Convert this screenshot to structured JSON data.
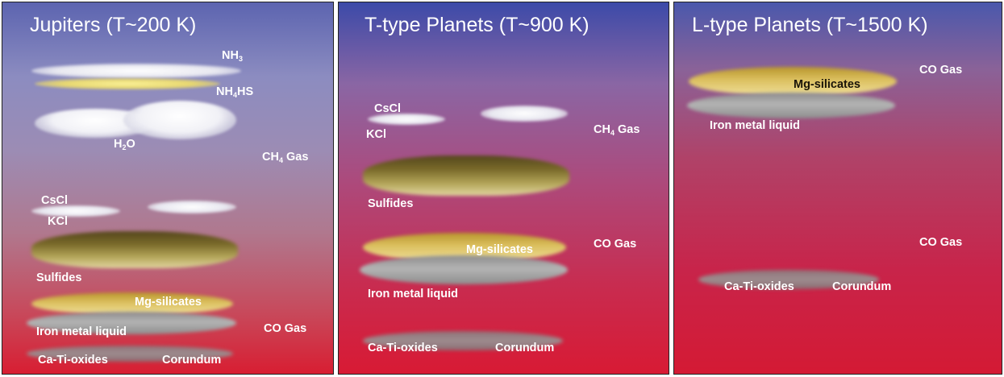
{
  "panels": [
    {
      "title": "Jupiters   (T~200 K)",
      "labels": {
        "nh3": "NH",
        "nh3_sub": "3",
        "nh4hs_a": "NH",
        "nh4hs_sub": "4",
        "nh4hs_b": "HS",
        "h2o_a": "H",
        "h2o_sub": "2",
        "h2o_b": "O",
        "ch4_a": "CH",
        "ch4_sub": "4",
        "ch4_b": " Gas",
        "cscl": "CsCl",
        "kcl": "KCl",
        "sulfides": "Sulfides",
        "mg_silicates": "Mg-silicates",
        "iron": "Iron metal liquid",
        "co_gas": "CO Gas",
        "ca_ti": "Ca-Ti-oxides",
        "corundum": "Corundum"
      }
    },
    {
      "title": "T-type Planets   (T~900 K)",
      "labels": {
        "cscl": "CsCl",
        "kcl": "KCl",
        "ch4_a": "CH",
        "ch4_sub": "4",
        "ch4_b": " Gas",
        "sulfides": "Sulfides",
        "co_gas": "CO Gas",
        "mg_silicates": "Mg-silicates",
        "iron": "Iron metal liquid",
        "ca_ti": "Ca-Ti-oxides",
        "corundum": "Corundum"
      }
    },
    {
      "title": "L-type Planets (T~1500 K)",
      "labels": {
        "co_gas_top": "CO Gas",
        "mg_silicates": "Mg-silicates",
        "iron": "Iron metal liquid",
        "co_gas_mid": "CO Gas",
        "ca_ti": "Ca-Ti-oxides",
        "corundum": "Corundum"
      }
    }
  ]
}
